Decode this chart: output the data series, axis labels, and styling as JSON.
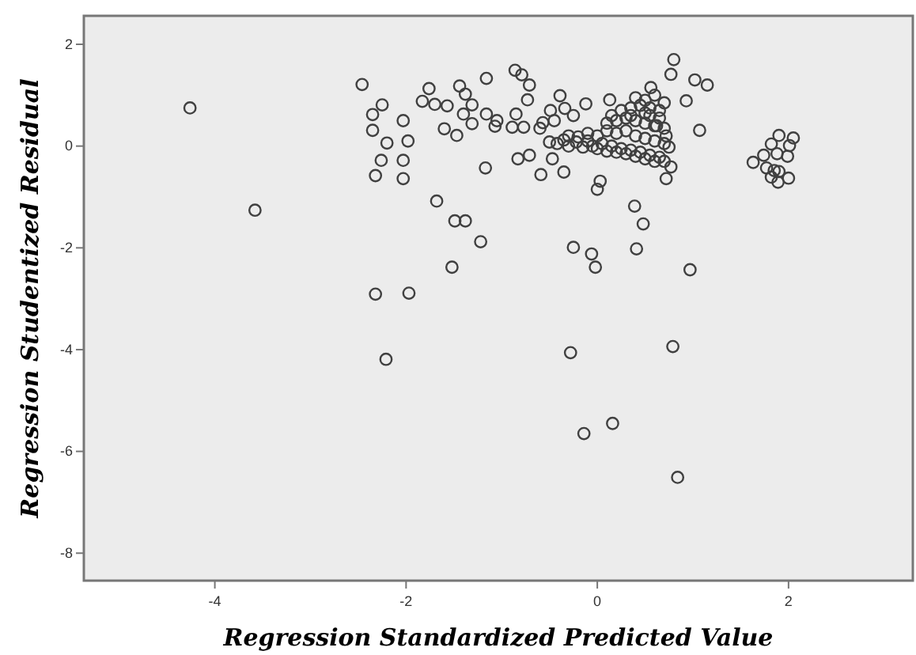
{
  "chart_data": {
    "type": "scatter",
    "xlabel": "Regression Standardized Predicted Value",
    "ylabel": "Regression Studentized Residual",
    "xlim": [
      -5.37,
      3.3
    ],
    "ylim": [
      -8.54,
      2.56
    ],
    "xticks": [
      -4,
      -2,
      0,
      2
    ],
    "yticks": [
      -8,
      -6,
      -4,
      -2,
      0,
      2
    ],
    "grid": false,
    "marker": "circle",
    "series": [
      {
        "color": "#404040",
        "x": [
          -4.26,
          -3.58,
          -2.46,
          -2.35,
          -2.25,
          -2.35,
          -2.2,
          -2.03,
          -1.98,
          -2.26,
          -2.32,
          -2.03,
          -2.03,
          -1.83,
          -1.76,
          -1.7,
          -1.57,
          -1.6,
          -1.47,
          -1.44,
          -1.38,
          -1.4,
          -1.68,
          -1.49,
          -1.38,
          -1.52,
          -2.32,
          -1.97,
          -2.21,
          -1.31,
          -1.31,
          -1.16,
          -1.16,
          -1.07,
          -1.05,
          -1.17,
          -0.86,
          -0.79,
          -0.71,
          -0.73,
          -0.85,
          -0.89,
          -0.77,
          -0.83,
          -0.71,
          -0.59,
          -0.47,
          -0.35,
          -0.49,
          -0.39,
          -0.34,
          -0.12,
          -0.57,
          0.03,
          0.0,
          0.13,
          0.56,
          0.8,
          0.77,
          1.02,
          1.15,
          0.93,
          1.07,
          0.72,
          0.77,
          0.75,
          0.39,
          0.48,
          0.41,
          0.97,
          -0.25,
          -0.06,
          -0.02,
          -1.22,
          -0.28,
          0.79,
          1.63,
          1.74,
          1.82,
          1.9,
          2.05,
          2.01,
          1.99,
          2.0,
          1.89,
          1.77,
          1.85,
          1.88,
          1.82,
          1.9,
          -0.14,
          0.16,
          0.84,
          -0.5,
          -0.42,
          -0.35,
          -0.3,
          -0.22,
          -0.15,
          -0.1,
          -0.05,
          0.0,
          0.05,
          0.1,
          0.15,
          0.2,
          0.25,
          0.3,
          0.35,
          0.4,
          0.45,
          0.5,
          0.55,
          0.6,
          0.65,
          0.7,
          -0.3,
          -0.2,
          -0.1,
          0.0,
          0.1,
          0.2,
          0.3,
          0.4,
          0.5,
          0.6,
          0.7,
          0.1,
          0.2,
          0.3,
          0.4,
          0.5,
          0.6,
          0.7,
          0.25,
          0.35,
          0.45,
          0.55,
          0.65,
          0.4,
          0.5,
          0.6,
          0.7,
          0.55,
          0.65,
          -0.6,
          -0.45,
          -0.25,
          0.15,
          0.35,
          0.5,
          0.62,
          0.72
        ],
        "values": [
          0.75,
          -1.26,
          1.21,
          0.62,
          0.81,
          0.31,
          0.06,
          0.5,
          0.1,
          -0.28,
          -0.58,
          -0.28,
          -0.64,
          0.88,
          1.13,
          0.82,
          0.79,
          0.34,
          0.21,
          1.18,
          1.02,
          0.63,
          -1.08,
          -1.47,
          -1.47,
          -2.38,
          -2.91,
          -2.89,
          -4.19,
          0.81,
          0.44,
          1.33,
          0.63,
          0.39,
          0.5,
          -0.43,
          1.49,
          1.4,
          1.2,
          0.91,
          0.63,
          0.37,
          0.37,
          -0.25,
          -0.18,
          -0.56,
          -0.25,
          -0.51,
          0.7,
          0.99,
          0.74,
          0.83,
          0.46,
          -0.69,
          -0.85,
          0.91,
          1.15,
          1.7,
          1.41,
          1.3,
          1.2,
          0.89,
          0.31,
          -0.64,
          -0.41,
          -0.02,
          -1.18,
          -1.53,
          -2.02,
          -2.43,
          -1.99,
          -2.12,
          -2.38,
          -1.88,
          -4.06,
          -3.94,
          -0.32,
          -0.18,
          0.04,
          0.21,
          0.16,
          0.01,
          -0.2,
          -0.63,
          -0.71,
          -0.43,
          -0.48,
          -0.15,
          -0.61,
          -0.5,
          -5.65,
          -5.45,
          -6.51,
          0.08,
          0.05,
          0.12,
          0.0,
          0.08,
          -0.02,
          0.1,
          0.0,
          -0.05,
          0.05,
          -0.1,
          0.0,
          -0.12,
          -0.05,
          -0.15,
          -0.08,
          -0.2,
          -0.12,
          -0.25,
          -0.18,
          -0.3,
          -0.22,
          -0.3,
          0.2,
          0.18,
          0.25,
          0.2,
          0.3,
          0.25,
          0.3,
          0.2,
          0.15,
          0.1,
          0.05,
          0.45,
          0.5,
          0.55,
          0.5,
          0.45,
          0.4,
          0.35,
          0.7,
          0.75,
          0.8,
          0.75,
          0.7,
          0.95,
          0.9,
          1.0,
          0.85,
          0.6,
          0.55,
          0.35,
          0.5,
          0.6,
          0.6,
          0.6,
          0.65,
          0.4,
          0.2
        ]
      }
    ]
  }
}
